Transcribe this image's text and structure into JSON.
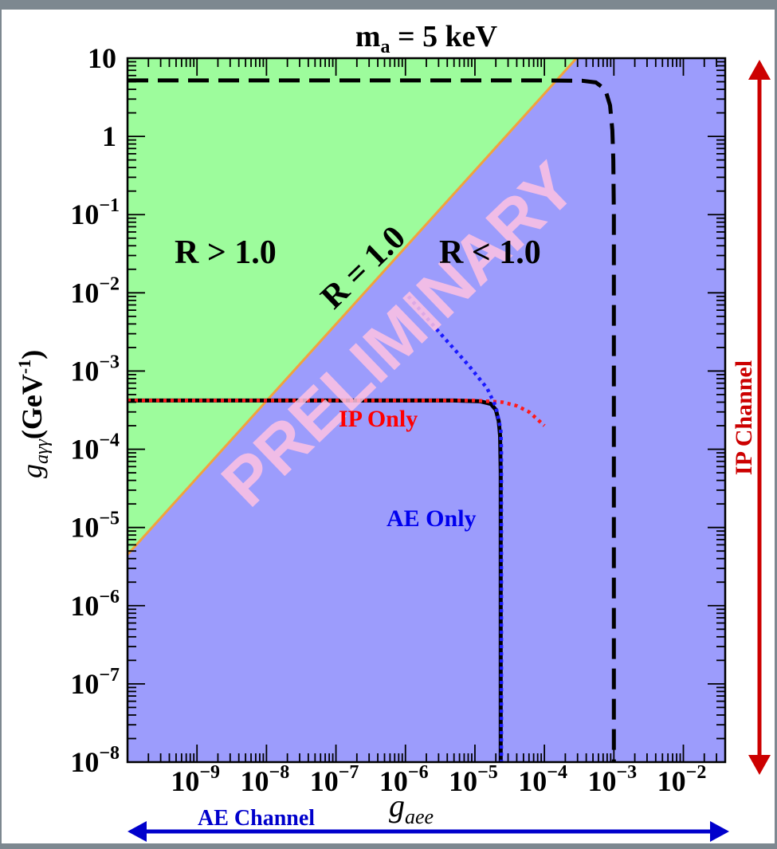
{
  "chart_data": {
    "type": "area",
    "title": "m",
    "title_sub": "a",
    "title_rest": " = 5 keV",
    "xlabel": "g",
    "xlabel_sub": "aee",
    "ylabel": "g",
    "ylabel_sub": "aγγ",
    "ylabel_unit": "(GeV",
    "ylabel_unit_sup": "-1",
    "ylabel_unit_close": ")",
    "x_scale": "log",
    "y_scale": "log",
    "xlim": [
      1e-10,
      0.04
    ],
    "ylim": [
      1e-08,
      10
    ],
    "x_ticks": [
      {
        "value": 1e-09,
        "base": "10",
        "exp": "−9"
      },
      {
        "value": 1e-08,
        "base": "10",
        "exp": "−8"
      },
      {
        "value": 1e-07,
        "base": "10",
        "exp": "−7"
      },
      {
        "value": 1e-06,
        "base": "10",
        "exp": "−6"
      },
      {
        "value": 1e-05,
        "base": "10",
        "exp": "−5"
      },
      {
        "value": 0.0001,
        "base": "10",
        "exp": "−4"
      },
      {
        "value": 0.001,
        "base": "10",
        "exp": "−3"
      },
      {
        "value": 0.01,
        "base": "10",
        "exp": "−2"
      }
    ],
    "y_ticks": [
      {
        "value": 10,
        "base": "10",
        "exp": ""
      },
      {
        "value": 1,
        "base": "1",
        "exp": ""
      },
      {
        "value": 0.1,
        "base": "10",
        "exp": "−1"
      },
      {
        "value": 0.01,
        "base": "10",
        "exp": "−2"
      },
      {
        "value": 0.001,
        "base": "10",
        "exp": "−3"
      },
      {
        "value": 0.0001,
        "base": "10",
        "exp": "−4"
      },
      {
        "value": 1e-05,
        "base": "10",
        "exp": "−5"
      },
      {
        "value": 1e-06,
        "base": "10",
        "exp": "−6"
      },
      {
        "value": 1e-07,
        "base": "10",
        "exp": "−7"
      },
      {
        "value": 1e-08,
        "base": "10",
        "exp": "−8"
      }
    ],
    "regions": [
      {
        "label": "R > 1.0",
        "color": "#9dfc9c",
        "x": 4e-10,
        "y": 0.04
      },
      {
        "label": "R < 1.0",
        "color": "#9c9cfc",
        "x": 6e-05,
        "y": 0.04
      }
    ],
    "boundary_line": {
      "label": "R = 1.0",
      "color": "#f2a23c",
      "start": [
        1e-10,
        4.5e-06
      ],
      "end": [
        0.00029,
        10
      ]
    },
    "series": [
      {
        "name": "",
        "style": "black-dashed",
        "points": [
          [
            1e-10,
            5.2
          ],
          [
            1e-05,
            5.2
          ],
          [
            0.0001,
            5.2
          ],
          [
            0.00035,
            5.15
          ],
          [
            0.00055,
            4.9
          ],
          [
            0.00075,
            4.0
          ],
          [
            0.00088,
            2.5
          ],
          [
            0.00095,
            1.2
          ],
          [
            0.00098,
            0.5
          ],
          [
            0.001,
            0.1
          ],
          [
            0.001,
            1e-08
          ]
        ]
      },
      {
        "name": "",
        "style": "black-solid",
        "points": [
          [
            1e-10,
            0.00042
          ],
          [
            5e-06,
            0.00042
          ],
          [
            1.2e-05,
            0.00041
          ],
          [
            1.7e-05,
            0.00038
          ],
          [
            2e-05,
            0.00032
          ],
          [
            2.2e-05,
            0.00023
          ],
          [
            2.3e-05,
            0.00015
          ],
          [
            2.35e-05,
            5e-05
          ],
          [
            2.35e-05,
            1e-08
          ]
        ]
      },
      {
        "name": "IP Only",
        "style": "red-dotted",
        "points": [
          [
            1e-10,
            0.00042
          ],
          [
            1e-05,
            0.00042
          ],
          [
            2.5e-05,
            0.0004
          ],
          [
            4e-05,
            0.00036
          ],
          [
            6e-05,
            0.0003
          ],
          [
            8e-05,
            0.00024
          ],
          [
            0.0001,
            0.0002
          ]
        ]
      },
      {
        "name": "AE Only",
        "style": "blue-dotted",
        "points": [
          [
            1.1e-06,
            0.009
          ],
          [
            3e-06,
            0.0032
          ],
          [
            8e-06,
            0.0012
          ],
          [
            1.5e-05,
            0.0006
          ],
          [
            2e-05,
            0.00035
          ],
          [
            2.35e-05,
            0.00018
          ],
          [
            2.4e-05,
            0.0001
          ],
          [
            2.4e-05,
            1e-08
          ]
        ]
      }
    ],
    "curve_labels": [
      {
        "text": "IP Only",
        "color": "#ff0000",
        "x": 1.8e-07,
        "y": 0.00016
      },
      {
        "text": "AE Only",
        "color": "#0000ee",
        "x": 1e-06,
        "y": 7e-06
      }
    ],
    "watermark": {
      "text": "PRELIMINARY",
      "color": "#ffc2e2"
    },
    "channels": [
      {
        "label": "AE Channel",
        "color": "#0000cc"
      },
      {
        "label": "IP Channel",
        "color": "#cc0000"
      }
    ],
    "grid": false,
    "legend": "none"
  }
}
